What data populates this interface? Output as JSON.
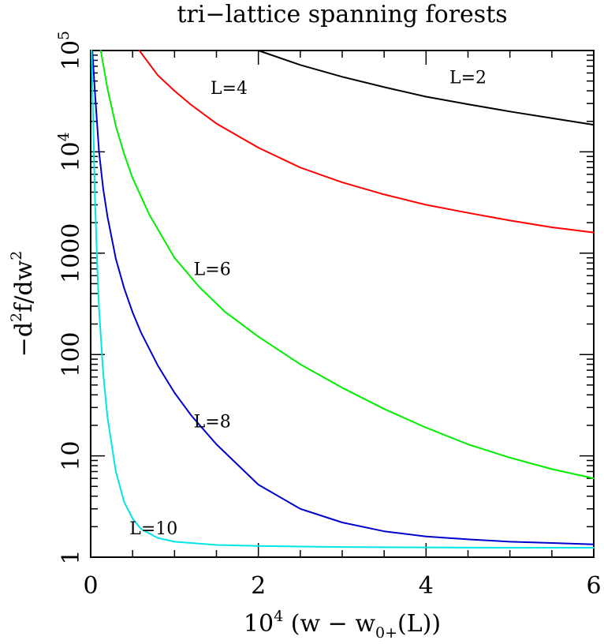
{
  "chart_data": {
    "type": "line",
    "title": "tri−lattice spanning forests",
    "xlabel": {
      "base": "10",
      "exp": "4",
      "mid": " (w − w",
      "sub": "0+",
      "tail": "(L))"
    },
    "ylabel": {
      "p1": "−d",
      "s1": "2",
      "p2": "f/dw",
      "s2": "2"
    },
    "xlim": [
      0,
      6
    ],
    "ylim": [
      1,
      100000
    ],
    "yscale": "log",
    "x_ticks": [
      "0",
      "2",
      "4",
      "6"
    ],
    "y_ticks": [
      {
        "value": 1,
        "label": "1"
      },
      {
        "value": 10,
        "label": "10"
      },
      {
        "value": 100,
        "label": "100"
      },
      {
        "value": 1000,
        "label": "1000"
      },
      {
        "value": 10000,
        "label": "10",
        "exp": "4"
      },
      {
        "value": 100000,
        "label": "10",
        "exp": "5"
      }
    ],
    "series": [
      {
        "name": "L=2",
        "color": "#000000",
        "x": [
          2.0,
          2.5,
          3.0,
          3.5,
          4.0,
          4.5,
          5.0,
          5.5,
          6.0
        ],
        "y": [
          100000,
          72000,
          55000,
          43500,
          35000,
          29500,
          25000,
          21500,
          18500
        ]
      },
      {
        "name": "L=4",
        "color": "#ff0000",
        "x": [
          0.58,
          0.8,
          1.0,
          1.2,
          1.5,
          2.0,
          2.5,
          3.0,
          3.5,
          4.0,
          4.5,
          5.0,
          5.5,
          6.0
        ],
        "y": [
          100000,
          57000,
          40000,
          29000,
          19000,
          11000,
          7000,
          5000,
          3800,
          3000,
          2500,
          2100,
          1800,
          1600
        ]
      },
      {
        "name": "L=6",
        "color": "#00ee00",
        "x": [
          0.12,
          0.2,
          0.3,
          0.4,
          0.5,
          0.7,
          1.0,
          1.3,
          1.6,
          2.0,
          2.5,
          3.0,
          3.5,
          4.0,
          4.5,
          5.0,
          5.5,
          6.0
        ],
        "y": [
          100000,
          42000,
          18000,
          9500,
          5500,
          2400,
          900,
          460,
          265,
          150,
          80,
          47,
          29,
          19,
          13,
          9.6,
          7.4,
          6.0
        ]
      },
      {
        "name": "L=8",
        "color": "#0000cc",
        "x": [
          0.02,
          0.05,
          0.1,
          0.15,
          0.2,
          0.3,
          0.4,
          0.5,
          0.6,
          0.8,
          1.0,
          1.2,
          1.5,
          2.0,
          2.5,
          3.0,
          3.5,
          4.0,
          4.5,
          5.0,
          5.5,
          6.0
        ],
        "y": [
          100000,
          40000,
          10000,
          4300,
          2300,
          880,
          450,
          260,
          165,
          78,
          42,
          25,
          13,
          5.2,
          3.0,
          2.2,
          1.8,
          1.6,
          1.5,
          1.42,
          1.38,
          1.34
        ]
      },
      {
        "name": "L=10",
        "color": "#00e5e5",
        "x": [
          0.01,
          0.03,
          0.05,
          0.08,
          0.1,
          0.15,
          0.2,
          0.3,
          0.4,
          0.5,
          0.6,
          0.8,
          1.0,
          1.5,
          2.0,
          3.0,
          4.0,
          5.0,
          6.0
        ],
        "y": [
          100000,
          20000,
          3800,
          700,
          280,
          65,
          24,
          7.0,
          3.5,
          2.4,
          1.9,
          1.55,
          1.42,
          1.32,
          1.29,
          1.26,
          1.25,
          1.24,
          1.24
        ]
      }
    ],
    "annotations": [
      {
        "text": "L=2",
        "x": 4.5,
        "y": 55000
      },
      {
        "text": "L=4",
        "x": 1.65,
        "y": 43000
      },
      {
        "text": "L=6",
        "x": 1.45,
        "y": 700
      },
      {
        "text": "L=8",
        "x": 1.45,
        "y": 22
      },
      {
        "text": "L=10",
        "x": 0.75,
        "y": 1.95
      }
    ],
    "grid": false,
    "legend": "none"
  }
}
